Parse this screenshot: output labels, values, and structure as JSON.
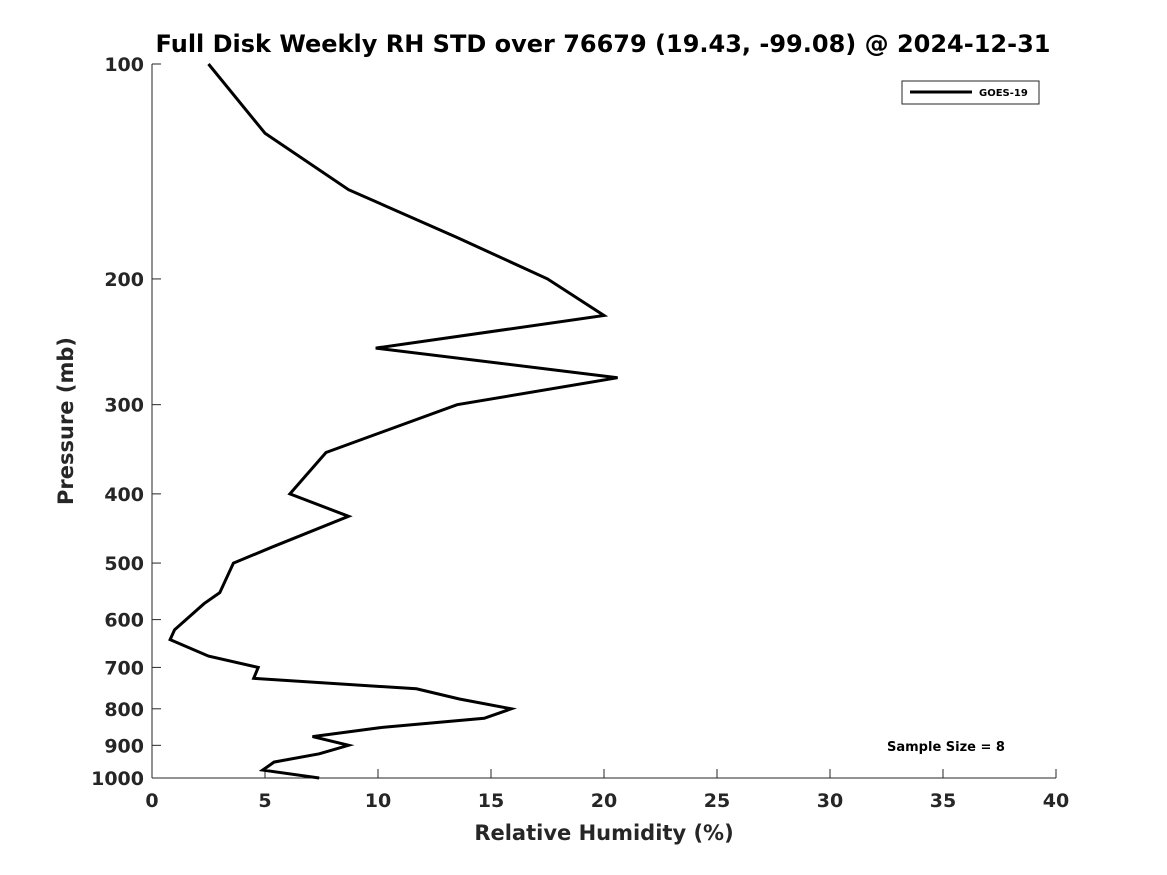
{
  "chart_data": {
    "type": "line",
    "title": "Full Disk Weekly RH STD over 76679 (19.43, -99.08) @ 2024-12-31",
    "xlabel": "Relative Humidity (%)",
    "ylabel": "Pressure (mb)",
    "xlim": [
      0,
      40
    ],
    "ylim": [
      100,
      1000
    ],
    "y_scale": "log",
    "y_reversed": true,
    "x_ticks": [
      0,
      5,
      10,
      15,
      20,
      25,
      30,
      35,
      40
    ],
    "y_ticks": [
      100,
      200,
      300,
      400,
      500,
      600,
      700,
      800,
      900,
      1000
    ],
    "grid": false,
    "legend_position": "top-right",
    "series": [
      {
        "name": "GOES-19",
        "color": "#000000",
        "points": [
          {
            "x": 2.5,
            "y": 100
          },
          {
            "x": 5.0,
            "y": 125
          },
          {
            "x": 8.7,
            "y": 150
          },
          {
            "x": 13.5,
            "y": 175
          },
          {
            "x": 17.5,
            "y": 200
          },
          {
            "x": 20.0,
            "y": 225
          },
          {
            "x": 9.9,
            "y": 250
          },
          {
            "x": 20.6,
            "y": 275
          },
          {
            "x": 13.5,
            "y": 300
          },
          {
            "x": 7.7,
            "y": 350
          },
          {
            "x": 6.1,
            "y": 400
          },
          {
            "x": 8.7,
            "y": 430
          },
          {
            "x": 5.3,
            "y": 475
          },
          {
            "x": 3.6,
            "y": 500
          },
          {
            "x": 3.0,
            "y": 550
          },
          {
            "x": 2.3,
            "y": 570
          },
          {
            "x": 1.0,
            "y": 620
          },
          {
            "x": 0.8,
            "y": 640
          },
          {
            "x": 2.5,
            "y": 675
          },
          {
            "x": 4.7,
            "y": 700
          },
          {
            "x": 4.5,
            "y": 725
          },
          {
            "x": 11.7,
            "y": 750
          },
          {
            "x": 13.6,
            "y": 775
          },
          {
            "x": 15.9,
            "y": 800
          },
          {
            "x": 14.7,
            "y": 825
          },
          {
            "x": 10.1,
            "y": 850
          },
          {
            "x": 7.1,
            "y": 875
          },
          {
            "x": 8.7,
            "y": 900
          },
          {
            "x": 7.4,
            "y": 925
          },
          {
            "x": 5.4,
            "y": 950
          },
          {
            "x": 4.9,
            "y": 975
          },
          {
            "x": 7.4,
            "y": 1000
          }
        ]
      }
    ],
    "annotations": [
      "Sample Size = 8"
    ]
  }
}
